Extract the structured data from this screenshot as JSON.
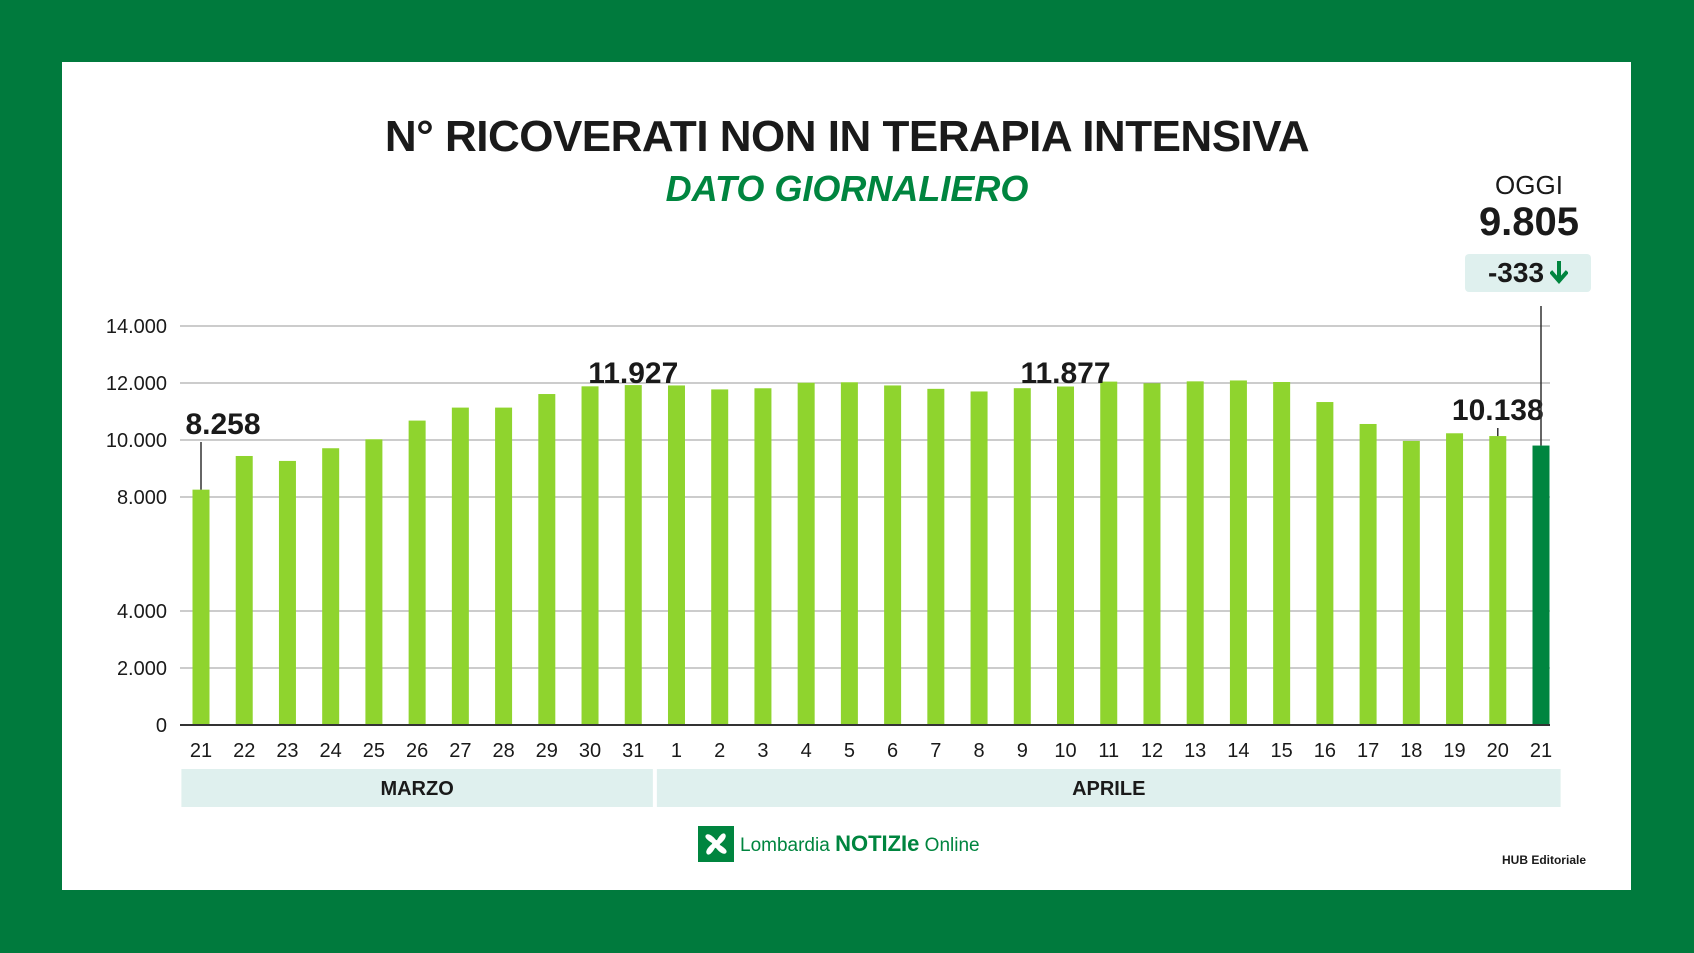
{
  "title": "N° RICOVERATI NON IN TERAPIA INTENSIVA",
  "subtitle": "DATO GIORNALIERO",
  "today": {
    "label": "OGGI",
    "value": "9.805",
    "delta": "-333"
  },
  "logo": {
    "part1": "Lombardia ",
    "part2": "NOTIZIe",
    "part3": " Online"
  },
  "credit": "HUB Editoriale",
  "colors": {
    "frame": "#007a3d",
    "bar": "#8fd42e",
    "bar_today": "#00853f",
    "accent": "#00853f",
    "band": "#dff0ee"
  },
  "chart_data": {
    "type": "bar",
    "ylim": [
      0,
      14000
    ],
    "yticks": [
      0,
      2000,
      4000,
      8000,
      10000,
      12000,
      14000
    ],
    "ytick_labels": [
      "0",
      "2.000",
      "4.000",
      "8.000",
      "10.000",
      "12.000",
      "14.000"
    ],
    "categories": [
      "21",
      "22",
      "23",
      "24",
      "25",
      "26",
      "27",
      "28",
      "29",
      "30",
      "31",
      "1",
      "2",
      "3",
      "4",
      "5",
      "6",
      "7",
      "8",
      "9",
      "10",
      "11",
      "12",
      "13",
      "14",
      "15",
      "16",
      "17",
      "18",
      "19",
      "20",
      "21"
    ],
    "groups": [
      {
        "label": "MARZO",
        "from": 0,
        "to": 10
      },
      {
        "label": "APRILE",
        "from": 11,
        "to": 31
      }
    ],
    "values": [
      8258,
      9439,
      9266,
      9711,
      10026,
      10681,
      11137,
      11137,
      11613,
      11883,
      11927,
      11914,
      11775,
      11815,
      12009,
      12026,
      11914,
      11795,
      11703,
      11818,
      11877,
      12049,
      11990,
      12058,
      12089,
      12035,
      11332,
      10562,
      9967,
      10236,
      10138,
      9805
    ],
    "annotations": [
      {
        "index": 0,
        "text": "8.258"
      },
      {
        "index": 10,
        "text": "11.927"
      },
      {
        "index": 20,
        "text": "11.877"
      },
      {
        "index": 30,
        "text": "10.138"
      }
    ],
    "highlight_index": 31
  }
}
